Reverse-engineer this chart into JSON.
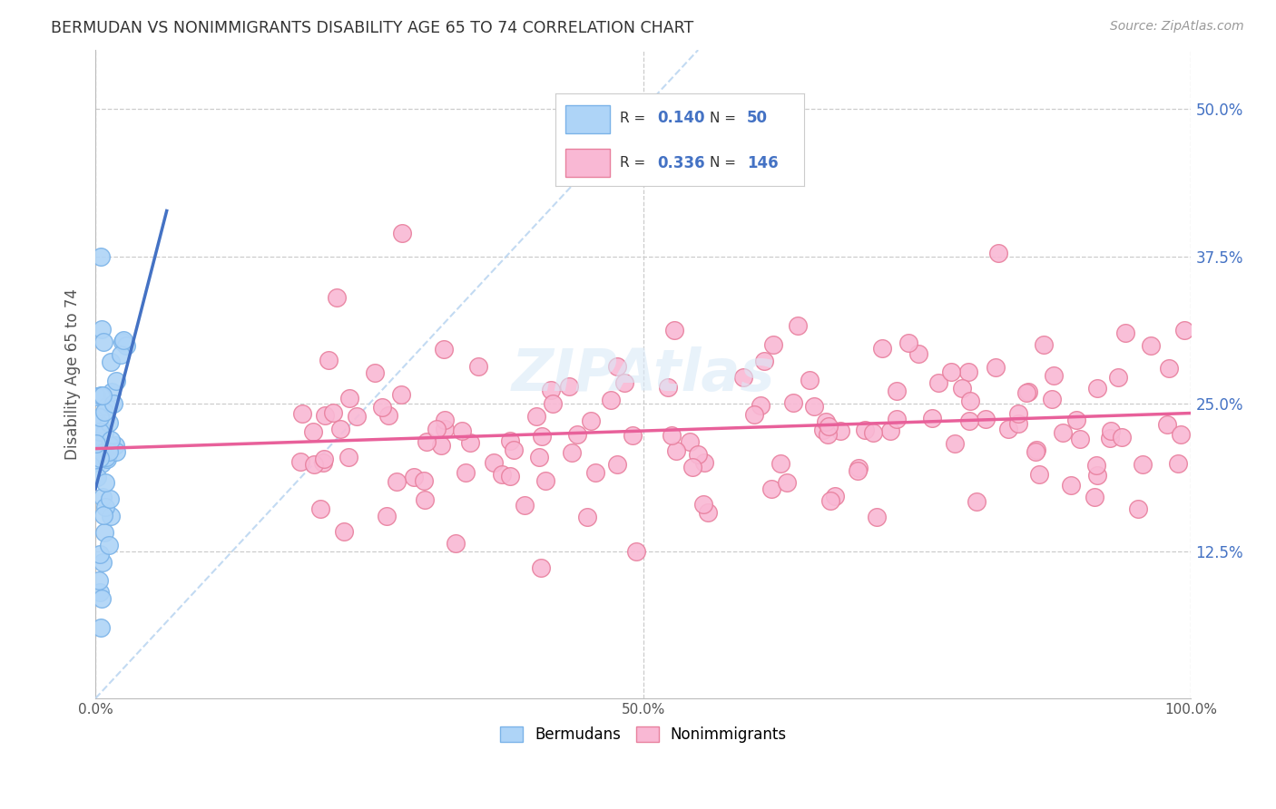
{
  "title": "BERMUDAN VS NONIMMIGRANTS DISABILITY AGE 65 TO 74 CORRELATION CHART",
  "source": "Source: ZipAtlas.com",
  "ylabel": "Disability Age 65 to 74",
  "xlim": [
    0.0,
    1.0
  ],
  "ylim": [
    0.0,
    0.55
  ],
  "yticks": [
    0.125,
    0.25,
    0.375,
    0.5
  ],
  "ytick_labels": [
    "12.5%",
    "25.0%",
    "37.5%",
    "50.0%"
  ],
  "xticks": [
    0.0,
    0.5,
    1.0
  ],
  "xtick_labels": [
    "0.0%",
    "50.0%",
    "100.0%"
  ],
  "bermudans_R": 0.14,
  "bermudans_N": 50,
  "nonimmigrants_R": 0.336,
  "nonimmigrants_N": 146,
  "bermudans_color": "#aed4f7",
  "bermudans_edge_color": "#7bb3e8",
  "nonimmigrants_color": "#f9b8d4",
  "nonimmigrants_edge_color": "#e8809e",
  "bermudans_line_color": "#4472c4",
  "nonimmigrants_line_color": "#e8609a",
  "diagonal_color": "#b8d4f0",
  "background_color": "#ffffff",
  "grid_color": "#cccccc",
  "title_color": "#333333",
  "right_tick_color": "#4472c4",
  "watermark_color": "#daeaf8"
}
